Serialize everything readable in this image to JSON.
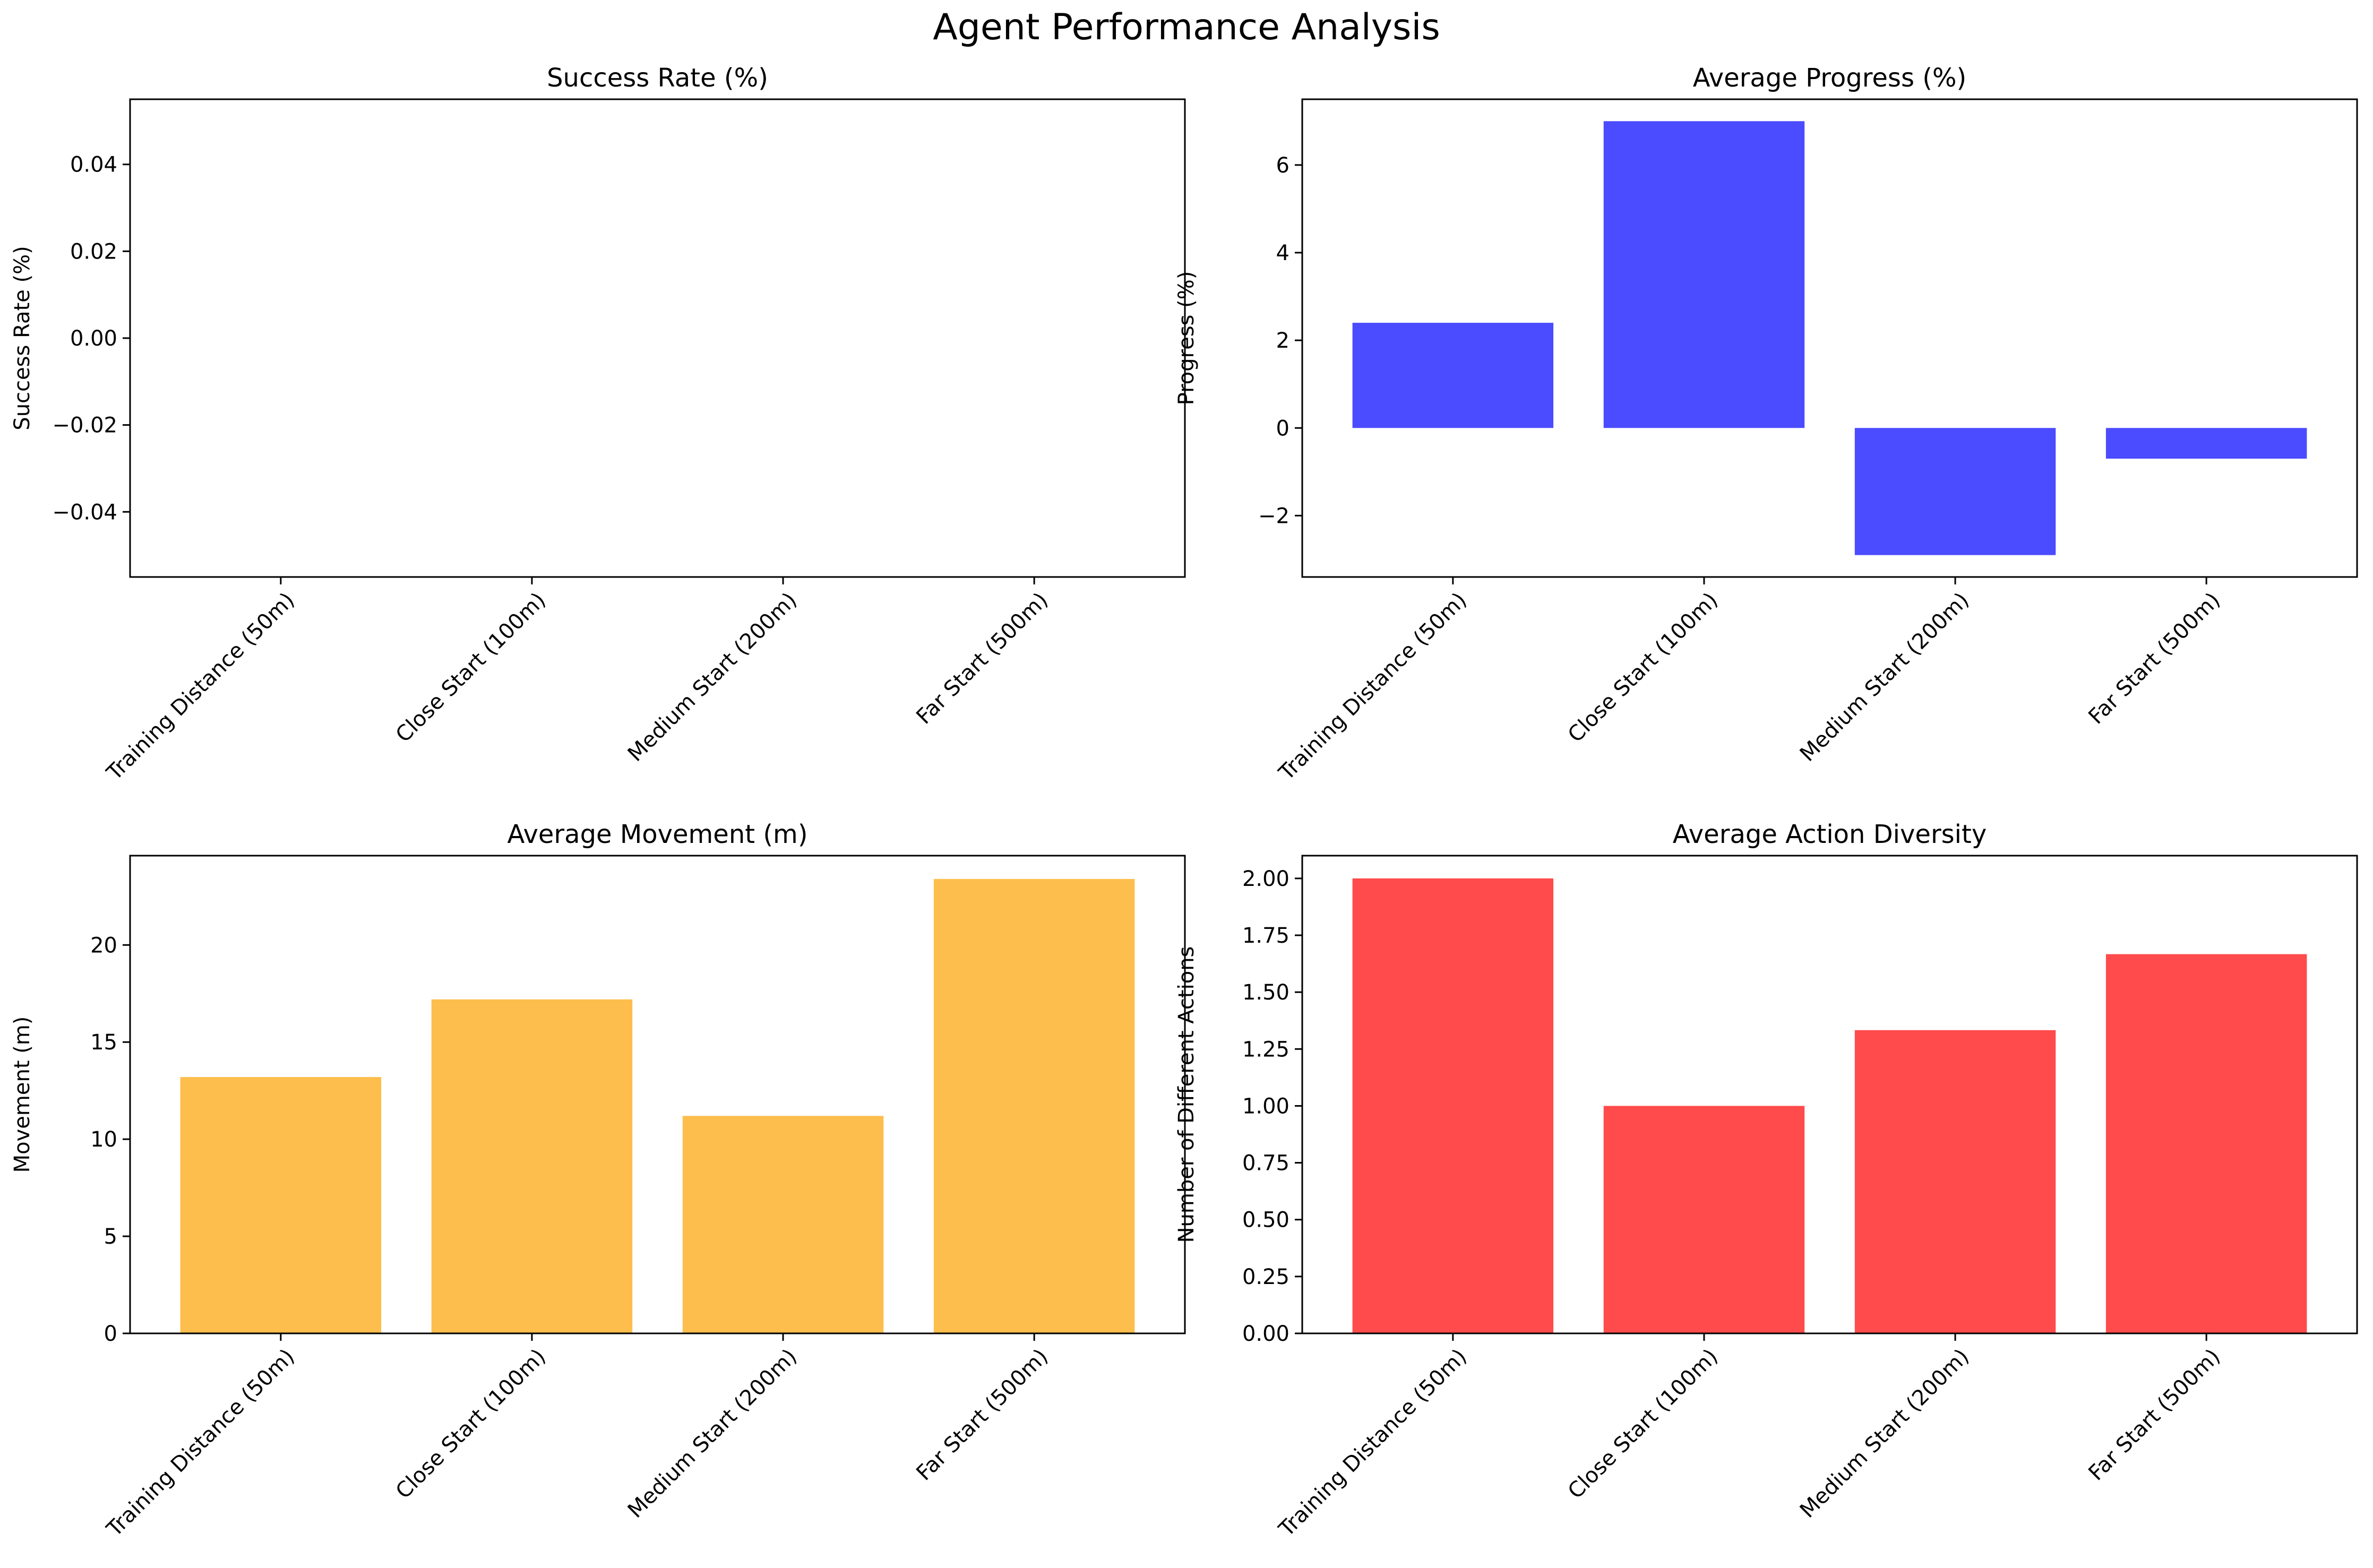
{
  "figure": {
    "title": "Agent Performance Analysis"
  },
  "chart_data": [
    {
      "type": "bar",
      "title": "Success Rate (%)",
      "xlabel": "",
      "ylabel": "Success Rate (%)",
      "categories": [
        "Training Distance (50m)",
        "Close Start (100m)",
        "Medium Start (200m)",
        "Far Start (500m)"
      ],
      "values": [
        0,
        0,
        0,
        0
      ],
      "ylim": [
        -0.055,
        0.055
      ],
      "yticks": [
        -0.04,
        -0.02,
        0.0,
        0.02,
        0.04
      ],
      "ytick_labels": [
        "−0.04",
        "−0.02",
        "0.00",
        "0.02",
        "0.04"
      ],
      "color": "#0000ff",
      "grid": false
    },
    {
      "type": "bar",
      "title": "Average Progress (%)",
      "xlabel": "",
      "ylabel": "Progress (%)",
      "categories": [
        "Training Distance (50m)",
        "Close Start (100m)",
        "Medium Start (200m)",
        "Far Start (500m)"
      ],
      "values": [
        2.4,
        7.0,
        -2.9,
        -0.7
      ],
      "ylim": [
        -3.4,
        7.5
      ],
      "yticks": [
        -2,
        0,
        2,
        4,
        6
      ],
      "ytick_labels": [
        "−2",
        "0",
        "2",
        "4",
        "6"
      ],
      "color": "#4b4bff",
      "grid": false
    },
    {
      "type": "bar",
      "title": "Average Movement (m)",
      "xlabel": "",
      "ylabel": "Movement (m)",
      "categories": [
        "Training Distance (50m)",
        "Close Start (100m)",
        "Medium Start (200m)",
        "Far Start (500m)"
      ],
      "values": [
        13.2,
        17.2,
        11.2,
        23.4
      ],
      "ylim": [
        0,
        24.6
      ],
      "yticks": [
        0,
        5,
        10,
        15,
        20
      ],
      "ytick_labels": [
        "0",
        "5",
        "10",
        "15",
        "20"
      ],
      "color": "#fdbe4d",
      "grid": false
    },
    {
      "type": "bar",
      "title": "Average Action Diversity",
      "xlabel": "",
      "ylabel": "Number of Different Actions",
      "categories": [
        "Training Distance (50m)",
        "Close Start (100m)",
        "Medium Start (200m)",
        "Far Start (500m)"
      ],
      "values": [
        2.0,
        1.0,
        1.333,
        1.667
      ],
      "ylim": [
        0,
        2.1
      ],
      "yticks": [
        0,
        0.25,
        0.5,
        0.75,
        1.0,
        1.25,
        1.5,
        1.75,
        2.0
      ],
      "ytick_labels": [
        "0.00",
        "0.25",
        "0.50",
        "0.75",
        "1.00",
        "1.25",
        "1.50",
        "1.75",
        "2.00"
      ],
      "color": "#ff4b4b",
      "grid": false
    }
  ]
}
